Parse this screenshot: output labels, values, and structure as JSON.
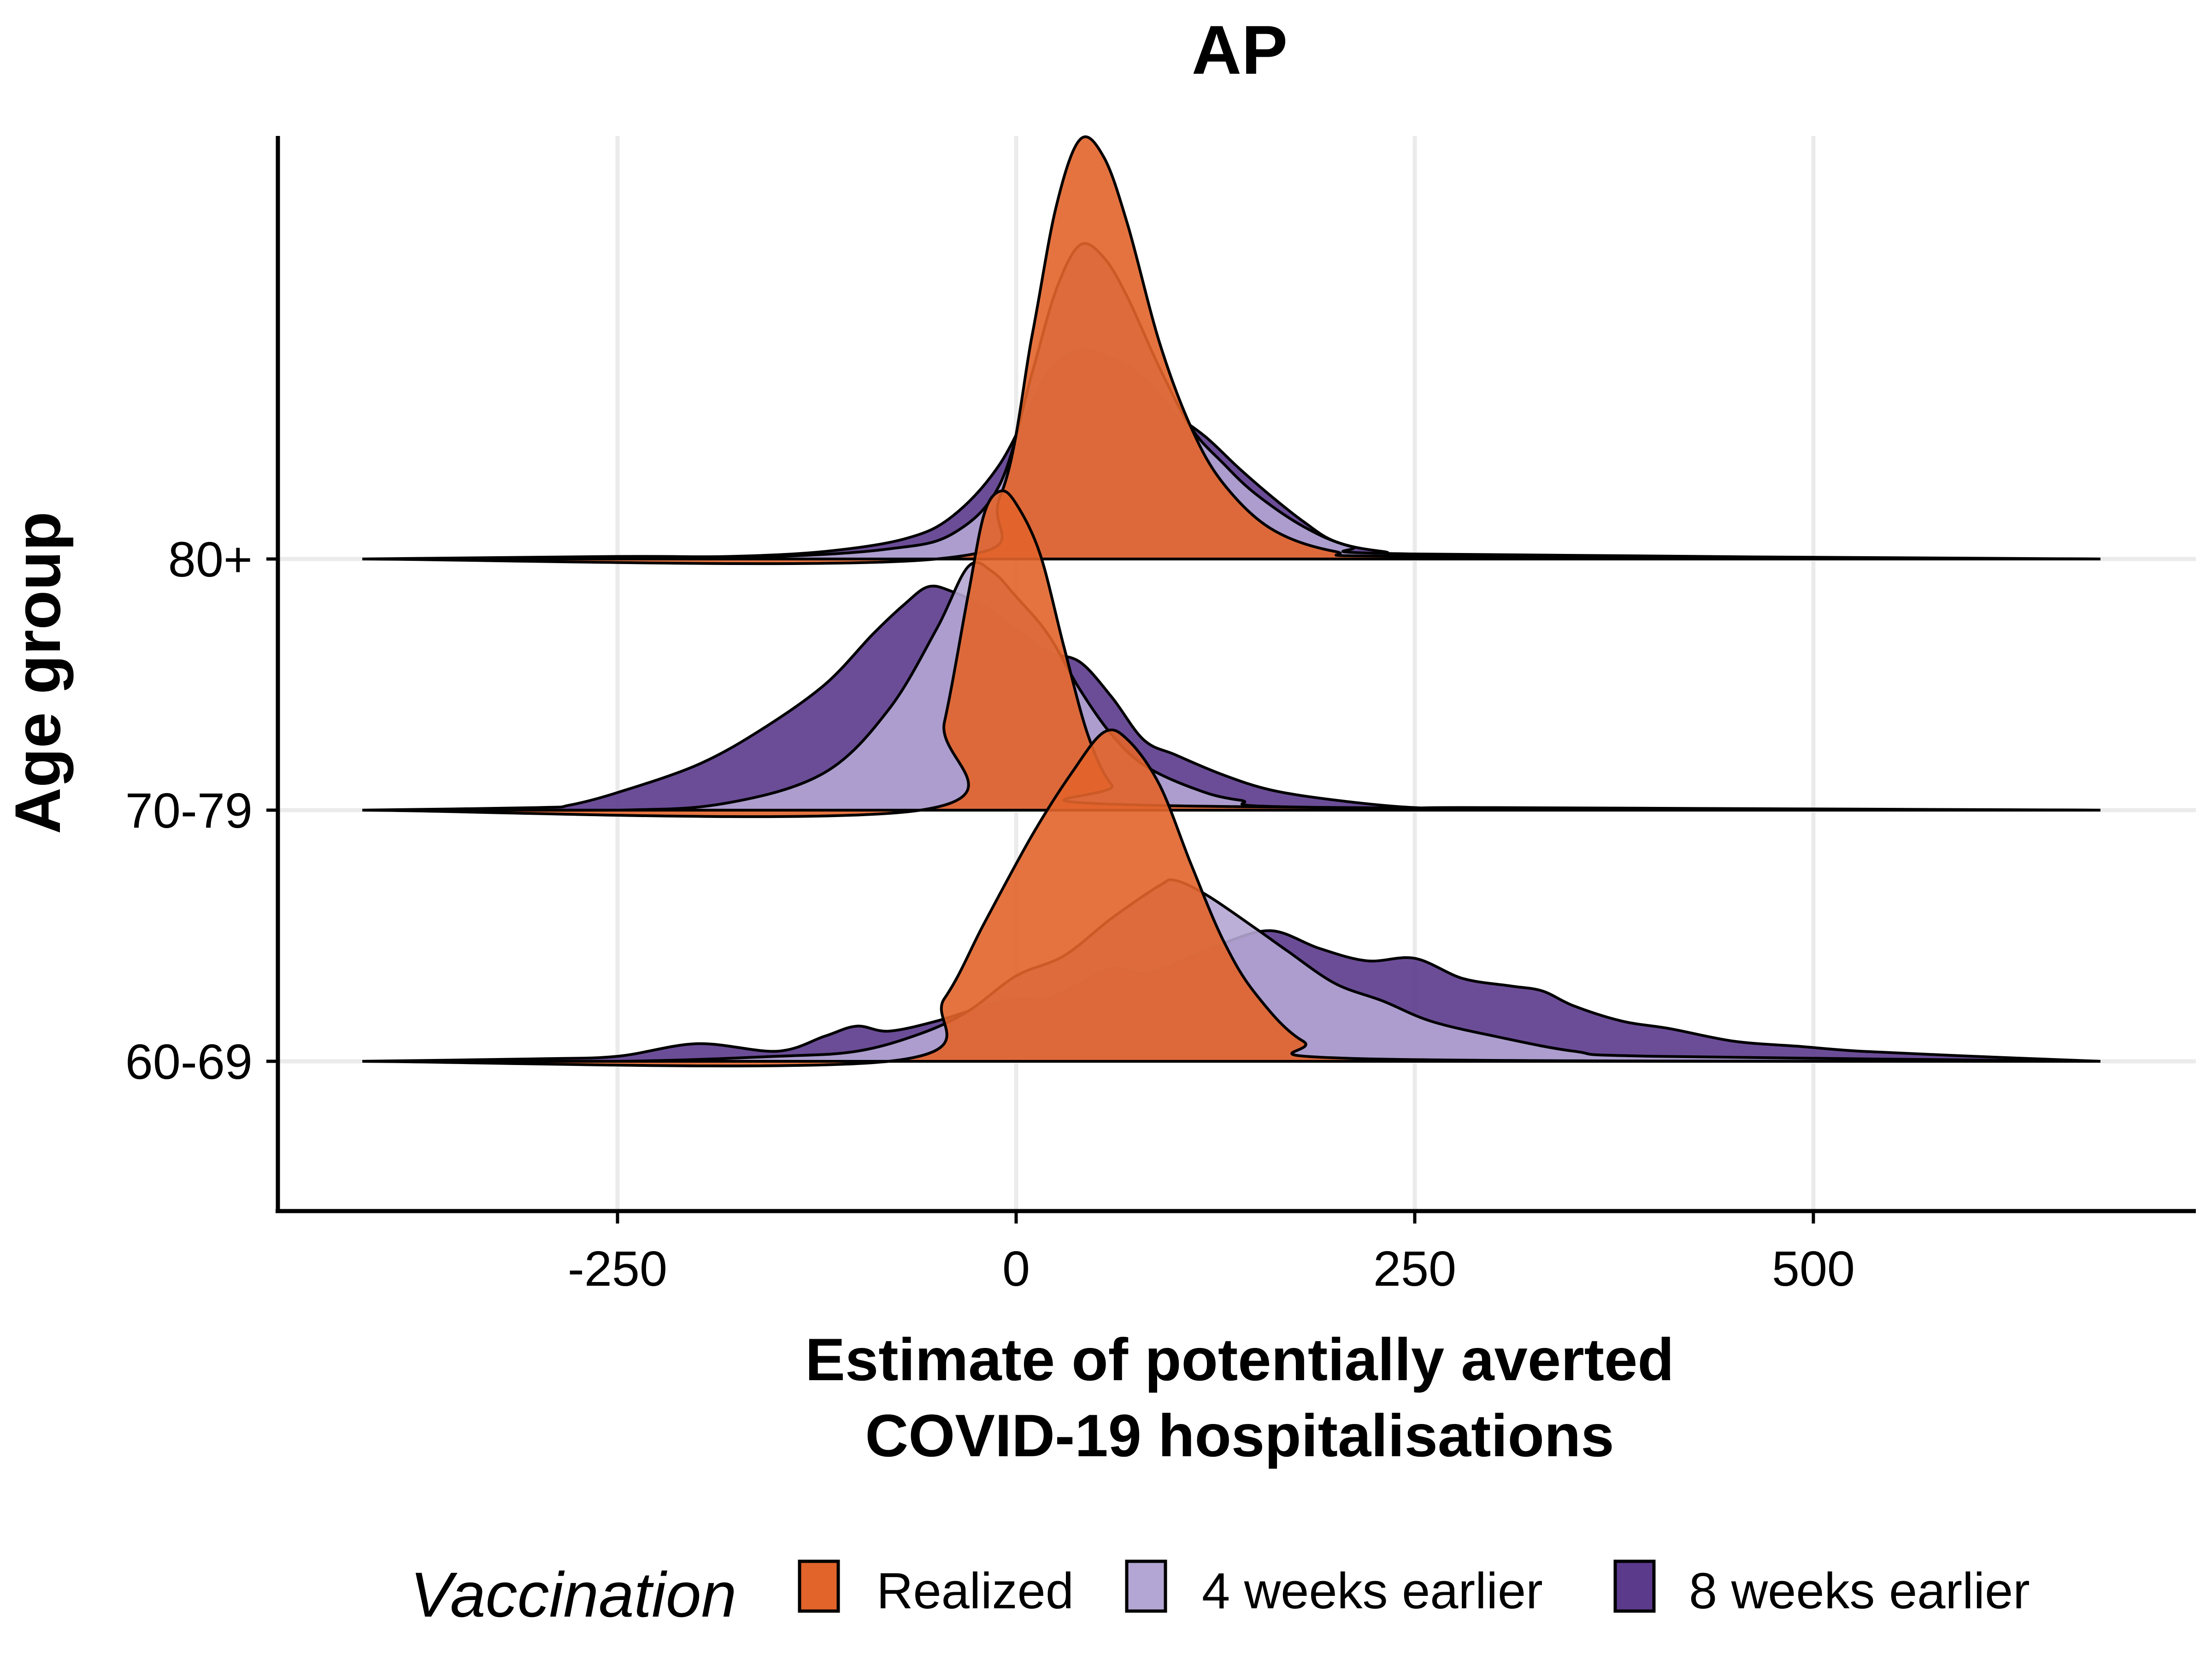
{
  "chart_data": {
    "type": "ridgeline",
    "title": "AP",
    "xlabel_lines": [
      "Estimate of potentially averted",
      "COVID-19 hospitalisations"
    ],
    "ylabel": "Age group",
    "xlim": [
      -500,
      740
    ],
    "x_ticks": [
      -250,
      0,
      250,
      500
    ],
    "x_tick_labels": [
      "-250",
      "0",
      "250",
      "500"
    ],
    "groups": [
      "60-69",
      "70-79",
      "80+"
    ],
    "grid": true,
    "legend": {
      "position": "bottom",
      "title": "Vaccination",
      "entries": [
        "Realized",
        "4 weeks earlier",
        "8 weeks earlier"
      ]
    },
    "series": [
      {
        "name": "8 weeks earlier",
        "color": "#5b3a8c",
        "draw_order": 1,
        "ridges": [
          {
            "group": "60-69",
            "points": [
              [
                -410,
                0
              ],
              [
                -300,
                0.01
              ],
              [
                -250,
                0.02
              ],
              [
                -200,
                0.07
              ],
              [
                -150,
                0.04
              ],
              [
                -120,
                0.1
              ],
              [
                -100,
                0.14
              ],
              [
                -80,
                0.12
              ],
              [
                -50,
                0.16
              ],
              [
                -20,
                0.22
              ],
              [
                0,
                0.25
              ],
              [
                20,
                0.25
              ],
              [
                40,
                0.31
              ],
              [
                60,
                0.37
              ],
              [
                80,
                0.35
              ],
              [
                100,
                0.39
              ],
              [
                130,
                0.47
              ],
              [
                160,
                0.52
              ],
              [
                190,
                0.45
              ],
              [
                220,
                0.4
              ],
              [
                250,
                0.41
              ],
              [
                280,
                0.33
              ],
              [
                310,
                0.3
              ],
              [
                330,
                0.28
              ],
              [
                350,
                0.22
              ],
              [
                380,
                0.16
              ],
              [
                410,
                0.13
              ],
              [
                450,
                0.08
              ],
              [
                490,
                0.06
              ],
              [
                530,
                0.04
              ],
              [
                600,
                0.02
              ],
              [
                680,
                0
              ]
            ]
          },
          {
            "group": "70-79",
            "points": [
              [
                -410,
                0
              ],
              [
                -300,
                0.01
              ],
              [
                -280,
                0.02
              ],
              [
                -250,
                0.07
              ],
              [
                -200,
                0.18
              ],
              [
                -160,
                0.32
              ],
              [
                -120,
                0.5
              ],
              [
                -90,
                0.7
              ],
              [
                -70,
                0.82
              ],
              [
                -55,
                0.89
              ],
              [
                -40,
                0.87
              ],
              [
                -20,
                0.81
              ],
              [
                0,
                0.72
              ],
              [
                20,
                0.63
              ],
              [
                40,
                0.59
              ],
              [
                60,
                0.45
              ],
              [
                80,
                0.28
              ],
              [
                100,
                0.22
              ],
              [
                130,
                0.14
              ],
              [
                160,
                0.08
              ],
              [
                200,
                0.04
              ],
              [
                250,
                0.01
              ],
              [
                300,
                0.01
              ],
              [
                680,
                0
              ]
            ]
          },
          {
            "group": "80+",
            "points": [
              [
                -410,
                0
              ],
              [
                -250,
                0.01
              ],
              [
                -180,
                0.01
              ],
              [
                -120,
                0.03
              ],
              [
                -70,
                0.08
              ],
              [
                -40,
                0.17
              ],
              [
                -10,
                0.38
              ],
              [
                20,
                0.74
              ],
              [
                40,
                0.83
              ],
              [
                60,
                0.8
              ],
              [
                80,
                0.72
              ],
              [
                100,
                0.58
              ],
              [
                120,
                0.48
              ],
              [
                140,
                0.36
              ],
              [
                160,
                0.25
              ],
              [
                180,
                0.15
              ],
              [
                200,
                0.07
              ],
              [
                230,
                0.03
              ],
              [
                280,
                0.01
              ],
              [
                680,
                0
              ]
            ]
          }
        ]
      },
      {
        "name": "4 weeks earlier",
        "color": "#b4a6d4",
        "draw_order": 2,
        "ridges": [
          {
            "group": "60-69",
            "points": [
              [
                -410,
                0
              ],
              [
                -250,
                0
              ],
              [
                -150,
                0.02
              ],
              [
                -100,
                0.04
              ],
              [
                -60,
                0.11
              ],
              [
                -30,
                0.2
              ],
              [
                0,
                0.34
              ],
              [
                30,
                0.42
              ],
              [
                60,
                0.57
              ],
              [
                90,
                0.7
              ],
              [
                100,
                0.72
              ],
              [
                120,
                0.66
              ],
              [
                150,
                0.53
              ],
              [
                170,
                0.44
              ],
              [
                200,
                0.31
              ],
              [
                230,
                0.24
              ],
              [
                260,
                0.16
              ],
              [
                300,
                0.1
              ],
              [
                350,
                0.04
              ],
              [
                400,
                0.02
              ],
              [
                680,
                0
              ]
            ]
          },
          {
            "group": "70-79",
            "points": [
              [
                -410,
                0
              ],
              [
                -250,
                0
              ],
              [
                -180,
                0.03
              ],
              [
                -120,
                0.15
              ],
              [
                -80,
                0.4
              ],
              [
                -50,
                0.72
              ],
              [
                -30,
                0.97
              ],
              [
                -15,
                0.95
              ],
              [
                0,
                0.85
              ],
              [
                20,
                0.7
              ],
              [
                40,
                0.48
              ],
              [
                60,
                0.3
              ],
              [
                80,
                0.18
              ],
              [
                110,
                0.09
              ],
              [
                140,
                0.04
              ],
              [
                200,
                0.01
              ],
              [
                680,
                0
              ]
            ]
          },
          {
            "group": "80+",
            "points": [
              [
                -410,
                0
              ],
              [
                -250,
                0
              ],
              [
                -150,
                0.01
              ],
              [
                -80,
                0.04
              ],
              [
                -40,
                0.1
              ],
              [
                -10,
                0.3
              ],
              [
                10,
                0.74
              ],
              [
                25,
                1.07
              ],
              [
                40,
                1.25
              ],
              [
                55,
                1.2
              ],
              [
                70,
                1.04
              ],
              [
                90,
                0.76
              ],
              [
                110,
                0.52
              ],
              [
                130,
                0.38
              ],
              [
                150,
                0.26
              ],
              [
                180,
                0.13
              ],
              [
                210,
                0.05
              ],
              [
                250,
                0.02
              ],
              [
                680,
                0
              ]
            ]
          }
        ]
      },
      {
        "name": "Realized",
        "color": "#e2642b",
        "draw_order": 3,
        "ridges": [
          {
            "group": "60-69",
            "points": [
              [
                -410,
                0
              ],
              [
                -80,
                0
              ],
              [
                -45,
                0.25
              ],
              [
                -20,
                0.55
              ],
              [
                10,
                0.9
              ],
              [
                35,
                1.15
              ],
              [
                55,
                1.31
              ],
              [
                70,
                1.28
              ],
              [
                90,
                1.1
              ],
              [
                110,
                0.78
              ],
              [
                130,
                0.48
              ],
              [
                150,
                0.27
              ],
              [
                180,
                0.08
              ],
              [
                220,
                0.01
              ],
              [
                680,
                0
              ]
            ]
          },
          {
            "group": "70-79",
            "points": [
              [
                -410,
                0
              ],
              [
                -60,
                0
              ],
              [
                -45,
                0.35
              ],
              [
                -30,
                0.86
              ],
              [
                -20,
                1.18
              ],
              [
                -10,
                1.27
              ],
              [
                0,
                1.22
              ],
              [
                15,
                1.02
              ],
              [
                30,
                0.65
              ],
              [
                45,
                0.3
              ],
              [
                60,
                0.1
              ],
              [
                80,
                0.02
              ],
              [
                680,
                0
              ]
            ]
          },
          {
            "group": "80+",
            "points": [
              [
                -410,
                0
              ],
              [
                -50,
                0
              ],
              [
                -10,
                0.25
              ],
              [
                10,
                0.89
              ],
              [
                25,
                1.4
              ],
              [
                40,
                1.67
              ],
              [
                55,
                1.6
              ],
              [
                70,
                1.33
              ],
              [
                90,
                0.86
              ],
              [
                110,
                0.52
              ],
              [
                130,
                0.3
              ],
              [
                160,
                0.12
              ],
              [
                200,
                0.03
              ],
              [
                250,
                0.01
              ],
              [
                680,
                0
              ]
            ]
          }
        ]
      }
    ]
  }
}
